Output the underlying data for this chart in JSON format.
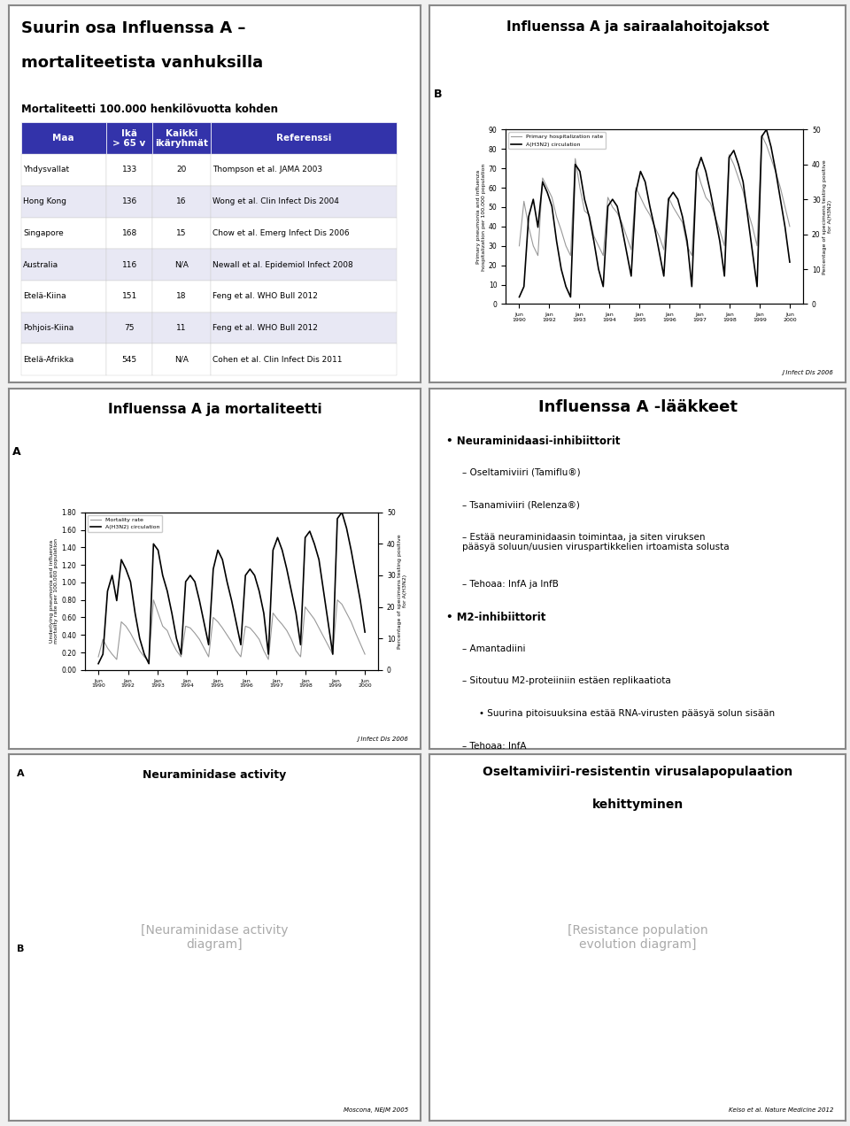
{
  "slide_bg": "#f0f0f0",
  "panel_bg": "#ffffff",
  "panel_border": "#888888",
  "panel1": {
    "title_line1": "Suurin osa Influenssa A –",
    "title_line2": "mortaliteetista vanhuksilla",
    "subtitle": "Mortaliteetti 100.000 henkilövuotta kohden",
    "header": [
      "Maa",
      "Ikä\n> 65 v",
      "Kaikki\nikäryhmät",
      "Referenssi"
    ],
    "header_bg": "#3333aa",
    "header_fg": "#ffffff",
    "rows": [
      [
        "Yhdysvallat",
        "133",
        "20",
        "Thompson et al. JAMA 2003"
      ],
      [
        "Hong Kong",
        "136",
        "16",
        "Wong et al. Clin Infect Dis 2004"
      ],
      [
        "Singapore",
        "168",
        "15",
        "Chow et al. Emerg Infect Dis 2006"
      ],
      [
        "Australia",
        "116",
        "N/A",
        "Newall et al. Epidemiol Infect 2008"
      ],
      [
        "Etelä-Kiina",
        "151",
        "18",
        "Feng et al. WHO Bull 2012"
      ],
      [
        "Pohjois-Kiina",
        "75",
        "11",
        "Feng et al. WHO Bull 2012"
      ],
      [
        "Etelä-Afrikka",
        "545",
        "N/A",
        "Cohen et al. Clin Infect Dis 2011"
      ]
    ],
    "row_colors": [
      "#ffffff",
      "#e8e8f4",
      "#ffffff",
      "#e8e8f4",
      "#ffffff",
      "#e8e8f4",
      "#ffffff"
    ]
  },
  "panel2": {
    "title": "Influenssa A ja sairaalahoitojaksot",
    "label_B": "B",
    "ylabel_left": "Primary pneumonia and influenza\nhospitalization per 100,000 population",
    "ylabel_right": "Percentage of specimens testing positive\nfor A(H3N2)",
    "ylim_left": [
      0,
      90
    ],
    "ylim_right": [
      0,
      50
    ],
    "yticks_left": [
      0,
      10,
      20,
      30,
      40,
      50,
      60,
      70,
      80,
      90
    ],
    "yticks_right": [
      0,
      10,
      20,
      30,
      40,
      50
    ],
    "xtick_labels": [
      "Jun\n1990",
      "Jan\n1992",
      "Jan\n1993",
      "Jan\n1994",
      "Jan\n1995",
      "Jan\n1996",
      "Jan\n1997",
      "Jan\n1998",
      "Jan\n1999",
      "Jun\n2000"
    ],
    "source": "J Infect Dis 2006",
    "hosp_data": [
      30,
      53,
      40,
      30,
      25,
      65,
      60,
      55,
      45,
      38,
      30,
      25,
      75,
      60,
      48,
      46,
      35,
      30,
      25,
      55,
      50,
      47,
      42,
      35,
      28,
      60,
      55,
      50,
      46,
      40,
      35,
      28,
      55,
      50,
      46,
      42,
      30,
      25,
      70,
      62,
      55,
      52,
      45,
      38,
      30,
      77,
      72,
      65,
      58,
      48,
      40,
      30,
      87,
      82,
      75,
      68,
      60,
      50,
      40
    ],
    "circ_data": [
      2,
      5,
      25,
      30,
      22,
      35,
      32,
      28,
      18,
      10,
      5,
      2,
      40,
      38,
      30,
      25,
      18,
      10,
      5,
      28,
      30,
      28,
      22,
      15,
      8,
      32,
      38,
      35,
      28,
      22,
      15,
      8,
      30,
      32,
      30,
      25,
      18,
      5,
      38,
      42,
      38,
      32,
      25,
      18,
      8,
      42,
      44,
      40,
      35,
      25,
      15,
      5,
      48,
      50,
      45,
      38,
      30,
      22,
      12
    ]
  },
  "panel3": {
    "title": "Influenssa A ja mortaliteetti",
    "label_A": "A",
    "ylabel_left": "Underlying pneumonia and influenza\nmortality rate per 100,000 population",
    "ylabel_right": "Percentage of specimens testing positive\nfor A(H3N2)",
    "ylim_left": [
      0,
      1.8
    ],
    "ylim_right": [
      0,
      50
    ],
    "yticks_left": [
      0.0,
      0.2,
      0.4,
      0.6,
      0.8,
      1.0,
      1.2,
      1.4,
      1.6,
      1.8
    ],
    "yticks_right": [
      0,
      10,
      20,
      30,
      40,
      50
    ],
    "xtick_labels": [
      "Jun\n1990",
      "Jan\n1992",
      "Jan\n1993",
      "Jan\n1994",
      "Jan\n1995",
      "Jan\n1996",
      "Jan\n1997",
      "Jan\n1998",
      "Jan\n1999",
      "Jun\n2000"
    ],
    "source": "J Infect Dis 2006",
    "mort_data": [
      0.15,
      0.35,
      0.25,
      0.18,
      0.12,
      0.55,
      0.5,
      0.42,
      0.32,
      0.22,
      0.15,
      0.1,
      0.8,
      0.65,
      0.5,
      0.45,
      0.32,
      0.22,
      0.15,
      0.5,
      0.48,
      0.42,
      0.35,
      0.25,
      0.15,
      0.6,
      0.55,
      0.48,
      0.4,
      0.32,
      0.22,
      0.15,
      0.5,
      0.48,
      0.42,
      0.35,
      0.22,
      0.12,
      0.65,
      0.58,
      0.52,
      0.45,
      0.35,
      0.22,
      0.15,
      0.72,
      0.65,
      0.58,
      0.48,
      0.38,
      0.28,
      0.18,
      0.8,
      0.75,
      0.65,
      0.55,
      0.42,
      0.3,
      0.18
    ],
    "circ_data": [
      2,
      5,
      25,
      30,
      22,
      35,
      32,
      28,
      18,
      10,
      5,
      2,
      40,
      38,
      30,
      25,
      18,
      10,
      5,
      28,
      30,
      28,
      22,
      15,
      8,
      32,
      38,
      35,
      28,
      22,
      15,
      8,
      30,
      32,
      30,
      25,
      18,
      5,
      38,
      42,
      38,
      32,
      25,
      18,
      8,
      42,
      44,
      40,
      35,
      25,
      15,
      5,
      48,
      50,
      45,
      38,
      30,
      22,
      12
    ]
  },
  "panel4": {
    "title_line1": "Influenssa A -lääkkeet",
    "bullets": [
      {
        "text": "Neuraminidaasi-inhibiittorit",
        "level": 0,
        "bold": true
      },
      {
        "text": "Oseltamiviiri (Tamiflu®)",
        "level": 1,
        "bold": false
      },
      {
        "text": "Tsanamiviiri (Relenza®)",
        "level": 1,
        "bold": false
      },
      {
        "text": "Estää neuraminidaasin toimintaa, ja siten viruksen\npääsyä soluun/uusien viruspartikkelien irtoamista solusta",
        "level": 1,
        "bold": false
      },
      {
        "text": "Tehoaa: InfA ja InfB",
        "level": 1,
        "bold": false
      },
      {
        "text": "M2-inhibiittorit",
        "level": 0,
        "bold": true
      },
      {
        "text": "Amantadiini",
        "level": 1,
        "bold": false
      },
      {
        "text": "Sitoutuu M2-proteiiniin estäen replikaatiota",
        "level": 1,
        "bold": false
      },
      {
        "text": "Suurina pitoisuuksina estää RNA-virusten pääsyä solun sisään",
        "level": 2,
        "bold": false
      },
      {
        "text": "Tehoaa: InfA",
        "level": 1,
        "bold": false
      }
    ]
  },
  "panel5": {
    "title": "Neuraminidase activity diagram",
    "source": "Moscona, NEJM 2005"
  },
  "panel6": {
    "title_line1": "Oseltamiviiri-resistentin virusalapopulaation",
    "title_line2": "kehittyminen",
    "source": "Kelso et al. Nature Medicine 2012"
  }
}
